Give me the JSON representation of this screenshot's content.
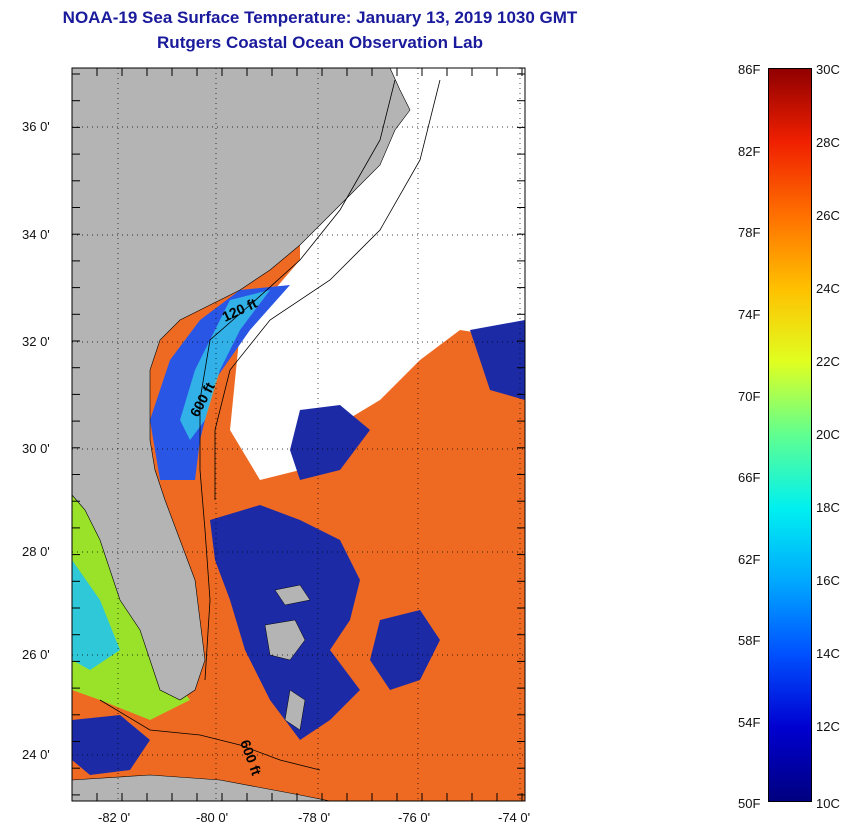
{
  "title": "NOAA-19 Sea Surface Temperature:  January 13, 2019 1030 GMT",
  "subtitle": "Rutgers Coastal Ocean Observation Lab",
  "map": {
    "lat_labels": [
      "36 0'",
      "34 0'",
      "32 0'",
      "30 0'",
      "28 0'",
      "26 0'",
      "24 0'"
    ],
    "lon_labels": [
      "-82 0'",
      "-80 0'",
      "-78 0'",
      "-76 0'",
      "-74 0'"
    ],
    "contour_labels": [
      "120 ft",
      "600 ft",
      "600 ft"
    ],
    "colors": {
      "land": "#b4b4b4",
      "cloud": "#ffffff",
      "gulf_stream": "#f06a1c",
      "cold": "#1a24a8"
    }
  },
  "colorbar": {
    "fahrenheit_labels": [
      "86F",
      "82F",
      "78F",
      "74F",
      "70F",
      "66F",
      "62F",
      "58F",
      "54F",
      "50F"
    ],
    "celsius_labels": [
      "30C",
      "28C",
      "26C",
      "24C",
      "22C",
      "20C",
      "18C",
      "16C",
      "14C",
      "12C",
      "10C"
    ],
    "gradient": [
      "#000080",
      "#0000d0",
      "#0050ff",
      "#00a8ff",
      "#00f0f0",
      "#60ff90",
      "#e0ff20",
      "#ffc000",
      "#ff7000",
      "#f02000",
      "#900000"
    ]
  }
}
